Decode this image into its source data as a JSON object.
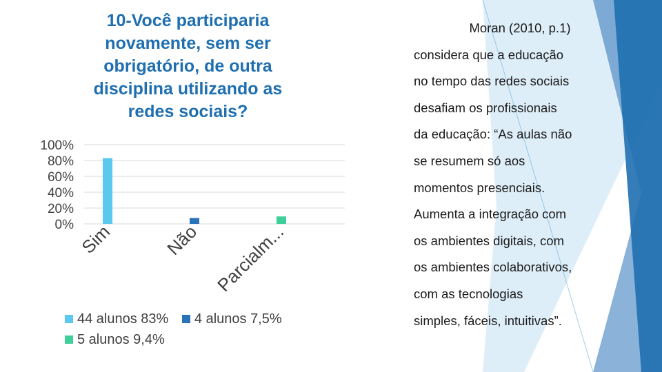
{
  "slide": {
    "title_lines": [
      "10-Você participaria",
      "novamente, sem ser",
      "obrigatório, de outra",
      "disciplina utilizando as",
      "redes sociais?"
    ],
    "quote_title": "Moran (2010, p.1)",
    "quote_lines": [
      "considera que a educação",
      "no tempo das redes sociais",
      "desafiam os profissionais",
      "da educação: “As aulas não",
      "se resumem só aos",
      "momentos presenciais.",
      "Aumenta a integração com",
      "os ambientes digitais, com",
      "os ambientes colaborativos,",
      "com as tecnologias",
      "simples, fáceis, intuitivas”."
    ]
  },
  "colors": {
    "series_sim": "#5bc8ef",
    "series_nao": "#2b73b8",
    "series_parcial": "#3fcf9a",
    "gridline": "#d9d9d9",
    "deco_dark": "#1f6fb0",
    "deco_light": "#4a9fd8"
  },
  "chart_data": {
    "type": "bar",
    "title": "10-Você participaria novamente, sem ser obrigatório, de outra disciplina utilizando as redes sociais?",
    "categories": [
      "Sim",
      "Não",
      "Parcialm..."
    ],
    "values": [
      83,
      7.5,
      9.4
    ],
    "ylim": [
      0,
      100
    ],
    "ytick_values": [
      100,
      80,
      60,
      40,
      20,
      0
    ],
    "ytick_labels": [
      "100%",
      "80%",
      "60%",
      "40%",
      "20%",
      "0%"
    ],
    "legend": [
      "44 alunos 83%",
      "4 alunos 7,5%",
      "5 alunos 9,4%"
    ],
    "xlabel": "",
    "ylabel": "",
    "grid": true
  }
}
